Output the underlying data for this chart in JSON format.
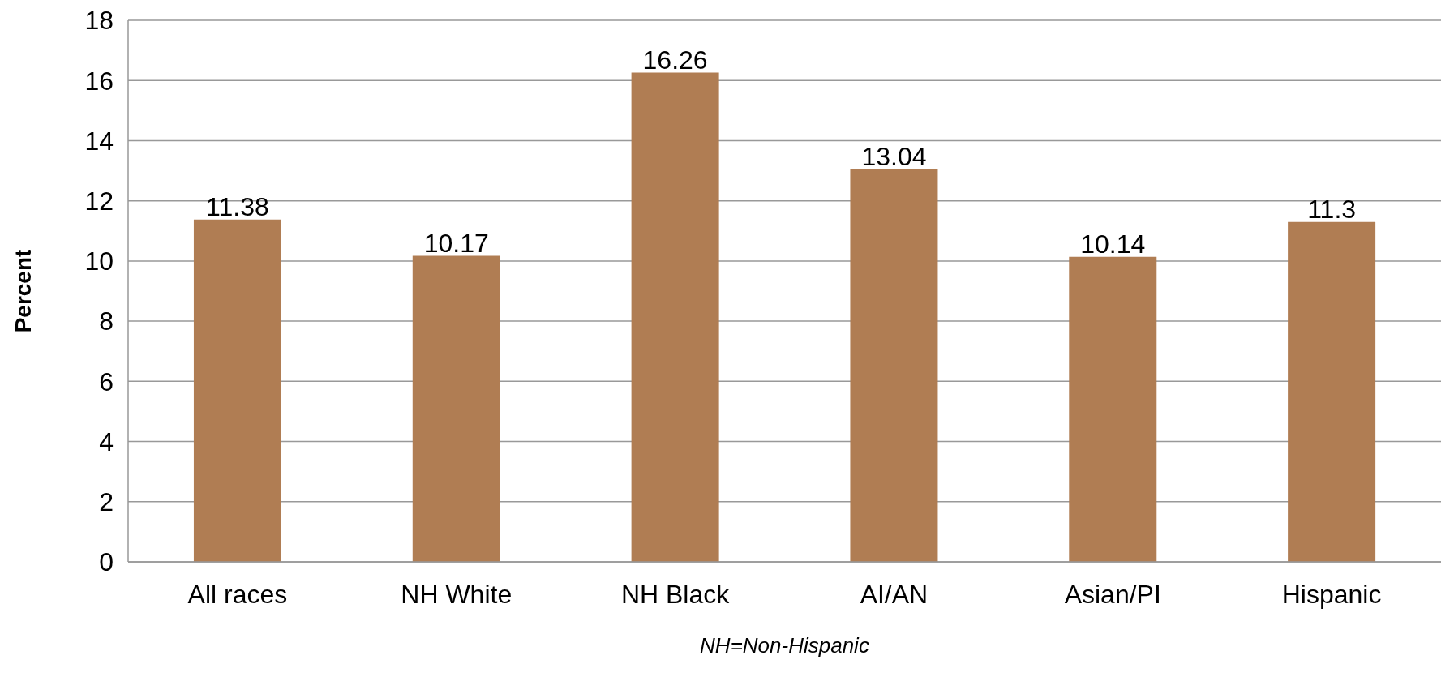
{
  "chart_data": {
    "type": "bar",
    "xlabel": "NH=Non-Hispanic",
    "ylabel": "Percent",
    "categories": [
      "All races",
      "NH White",
      "NH Black",
      "AI/AN",
      "Asian/PI",
      "Hispanic"
    ],
    "values": [
      11.38,
      10.17,
      16.26,
      13.04,
      10.14,
      11.3
    ],
    "color": "#b07d53",
    "ylim": [
      0,
      18
    ],
    "yticks": [
      0,
      2,
      4,
      6,
      8,
      10,
      12,
      14,
      16,
      18
    ],
    "grid": "y",
    "data_labels": true
  }
}
